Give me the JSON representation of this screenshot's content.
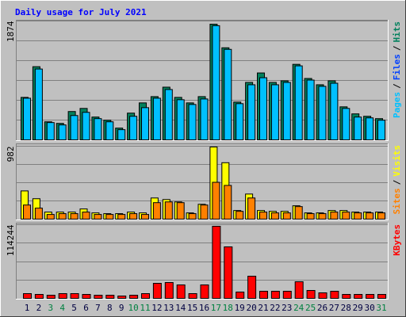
{
  "title": "Daily usage for July 2021",
  "chart_data": [
    {
      "type": "bar",
      "ylim": [
        0,
        1874
      ],
      "yticks": [
        1874
      ],
      "series": [
        {
          "color": "#00805c",
          "values": [
            670,
            1154,
            285,
            260,
            447,
            496,
            360,
            310,
            186,
            422,
            583,
            682,
            831,
            670,
            583,
            682,
            1824,
            1452,
            596,
            906,
            1055,
            906,
            931,
            1191,
            968,
            869,
            931,
            521,
            410,
            372,
            335
          ]
        },
        {
          "color": "#00c0ff",
          "values": [
            657,
            1117,
            273,
            236,
            384,
            434,
            335,
            285,
            161,
            372,
            508,
            657,
            794,
            633,
            558,
            645,
            1800,
            1427,
            571,
            869,
            980,
            869,
            906,
            1167,
            943,
            844,
            893,
            496,
            360,
            347,
            310
          ]
        }
      ],
      "legend": [
        {
          "name": "Pages",
          "color": "#00c0ff"
        },
        {
          "name": "Files",
          "color": "#0040ff"
        },
        {
          "name": "Hits",
          "color": "#00805c"
        }
      ],
      "legend_separator": "/"
    },
    {
      "type": "bar",
      "ylim": [
        0,
        982
      ],
      "yticks": [
        982
      ],
      "series": [
        {
          "color": "#ffff00",
          "values": [
            380,
            275,
            95,
            95,
            95,
            137,
            84,
            74,
            74,
            95,
            84,
            285,
            264,
            232,
            84,
            200,
            972,
            760,
            116,
            338,
            116,
            105,
            105,
            180,
            84,
            84,
            116,
            116,
            95,
            95,
            95
          ]
        },
        {
          "color": "#ff8000",
          "values": [
            190,
            148,
            63,
            74,
            74,
            95,
            63,
            63,
            63,
            74,
            63,
            222,
            232,
            222,
            74,
            190,
            496,
            454,
            105,
            285,
            95,
            84,
            84,
            169,
            74,
            74,
            95,
            95,
            84,
            84,
            84
          ]
        }
      ],
      "legend": [
        {
          "name": "Sites",
          "color": "#ff8000"
        },
        {
          "name": "Visits",
          "color": "#ffff00"
        }
      ],
      "legend_separator": "/"
    },
    {
      "type": "bar",
      "ylim": [
        0,
        114244
      ],
      "yticks": [
        114244
      ],
      "series": [
        {
          "color": "#ff0000",
          "values": [
            7370,
            6142,
            4914,
            7370,
            7370,
            6142,
            4914,
            4914,
            3685,
            4914,
            7370,
            23340,
            24568,
            20883,
            7370,
            20883,
            111787,
            79848,
            9827,
            34396,
            11056,
            11056,
            11056,
            25797,
            12284,
            8599,
            11056,
            6142,
            6142,
            6142,
            6142
          ]
        }
      ],
      "legend": [
        {
          "name": "KBytes",
          "color": "#ff0000"
        }
      ],
      "categories": [
        "1",
        "2",
        "3",
        "4",
        "5",
        "6",
        "7",
        "8",
        "9",
        "10",
        "11",
        "12",
        "13",
        "14",
        "15",
        "16",
        "17",
        "18",
        "19",
        "20",
        "21",
        "22",
        "23",
        "24",
        "25",
        "26",
        "27",
        "28",
        "29",
        "30",
        "31"
      ],
      "category_colors": [
        "#000040",
        "#000040",
        "#008040",
        "#008040",
        "#000040",
        "#000040",
        "#000040",
        "#000040",
        "#000040",
        "#008040",
        "#008040",
        "#000040",
        "#000040",
        "#000040",
        "#000040",
        "#000040",
        "#008040",
        "#008040",
        "#000040",
        "#000040",
        "#000040",
        "#000040",
        "#000040",
        "#008040",
        "#008040",
        "#000040",
        "#000040",
        "#000040",
        "#000040",
        "#000040",
        "#008040"
      ]
    }
  ]
}
